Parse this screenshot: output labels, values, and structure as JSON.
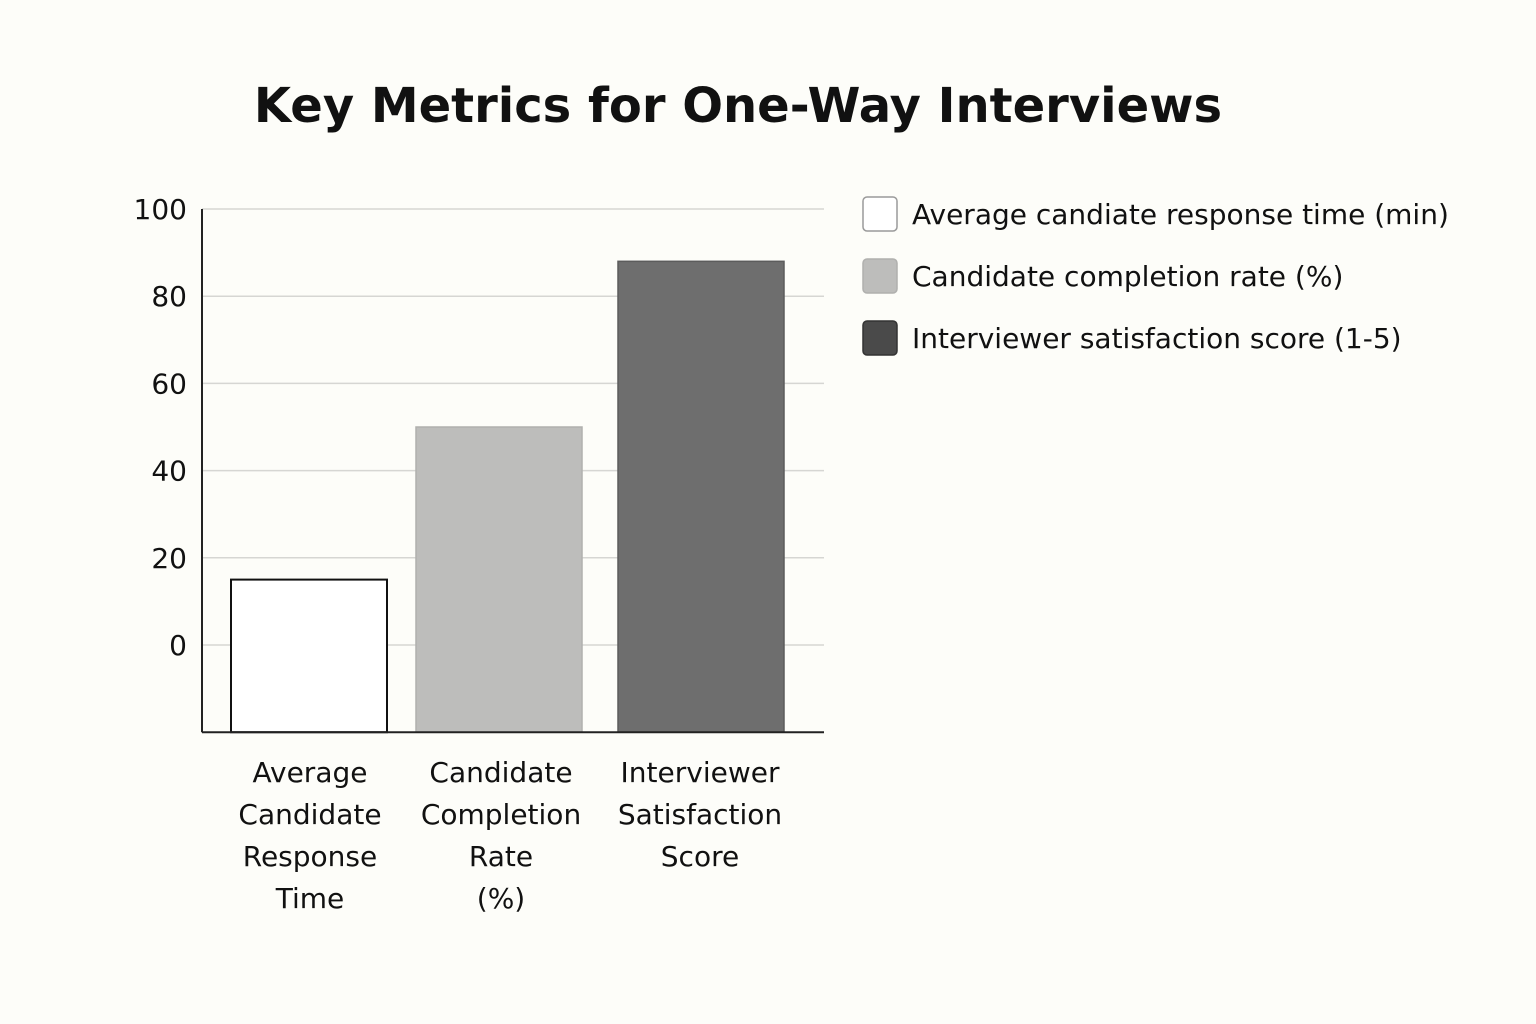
{
  "chart_data": {
    "type": "bar",
    "title": "Key Metrics for One-Way Interviews",
    "xlabel": "",
    "ylabel": "",
    "ylim": [
      -20,
      100
    ],
    "yticks": [
      0,
      20,
      40,
      60,
      80,
      100
    ],
    "grid": true,
    "legend_position": "right",
    "categories": [
      [
        "Average",
        "Candidate",
        "Response",
        "Time"
      ],
      [
        "Candidate",
        "Completion",
        "Rate",
        "(%)"
      ],
      [
        "Interviewer",
        "Satisfaction",
        "Score"
      ]
    ],
    "values": [
      15,
      50,
      88
    ],
    "colors": [
      "#ffffff",
      "#bdbdbb",
      "#6e6e6e"
    ],
    "legend": [
      {
        "label": "Average candiate response time (min)",
        "color": "#ffffff"
      },
      {
        "label": "Candidate completion rate (%)",
        "color": "#bdbdbb"
      },
      {
        "label": "Interviewer satisfaction score (1-5)",
        "color": "#4a4a4a"
      }
    ]
  }
}
